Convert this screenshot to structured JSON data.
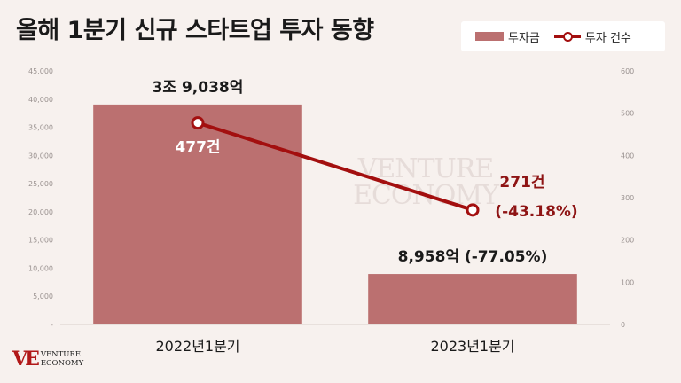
{
  "title": "올해 1분기 신규 스타트업 투자 동향",
  "legend": {
    "bar_label": "투자금",
    "line_label": "투자 건수"
  },
  "watermark": {
    "line1": "VENTURE",
    "line2": "ECONOMY"
  },
  "logo": {
    "mark": "VE",
    "line1": "VENTURE",
    "line2": "ECONOMY"
  },
  "colors": {
    "bar": "#bb7070",
    "line": "#a30f0f",
    "background": "#f7f1ee",
    "label_dark": "#1a1a1a",
    "label_light": "#ffffff",
    "line_label": "#8e1414"
  },
  "chart_data": {
    "type": "bar",
    "categories": [
      "2022년1분기",
      "2023년1분기"
    ],
    "series": [
      {
        "name": "투자금",
        "type": "bar",
        "axis": "left",
        "values": [
          39038,
          8958
        ],
        "labels": [
          "3조 9,038억",
          "8,958억 (-77.05%)"
        ]
      },
      {
        "name": "투자 건수",
        "type": "line",
        "axis": "right",
        "values": [
          477,
          271
        ],
        "labels": [
          "477건",
          "271건"
        ],
        "extra_label": "(-43.18%)"
      }
    ],
    "y_left": {
      "min": 0,
      "max": 45000,
      "ticks": [
        "-",
        "5,000",
        "10,000",
        "15,000",
        "20,000",
        "25,000",
        "30,000",
        "35,000",
        "40,000",
        "45,000"
      ]
    },
    "y_right": {
      "min": 0,
      "max": 600,
      "ticks": [
        "0",
        "100",
        "200",
        "300",
        "400",
        "500",
        "600"
      ]
    },
    "grid": false,
    "legend_position": "top-right"
  }
}
